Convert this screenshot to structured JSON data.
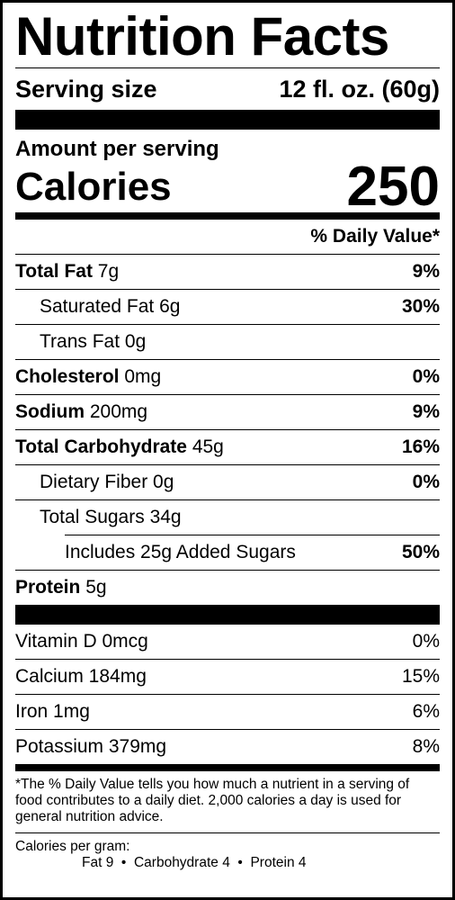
{
  "title": "Nutrition Facts",
  "serving": {
    "label": "Serving size",
    "value": "12 fl. oz. (60g)"
  },
  "amount_per_serving": "Amount per serving",
  "calories": {
    "label": "Calories",
    "value": "250"
  },
  "daily_value_header": "% Daily Value*",
  "nutrients": [
    {
      "name": "Total Fat",
      "amount": "7g",
      "dv": "9%"
    },
    {
      "name": "Saturated Fat",
      "amount": "6g",
      "dv": "30%"
    },
    {
      "name": "Trans Fat",
      "amount": "0g",
      "dv": ""
    },
    {
      "name": "Cholesterol",
      "amount": "0mg",
      "dv": "0%"
    },
    {
      "name": "Sodium",
      "amount": "200mg",
      "dv": "9%"
    },
    {
      "name": "Total Carbohydrate",
      "amount": "45g",
      "dv": "16%"
    },
    {
      "name": "Dietary Fiber",
      "amount": "0g",
      "dv": "0%"
    },
    {
      "name": "Total Sugars",
      "amount": "34g",
      "dv": ""
    },
    {
      "name": "Includes 25g Added Sugars",
      "amount": "",
      "dv": "50%"
    },
    {
      "name": "Protein",
      "amount": "5g",
      "dv": ""
    }
  ],
  "vitamins": [
    {
      "name": "Vitamin D 0mcg",
      "dv": "0%"
    },
    {
      "name": "Calcium 184mg",
      "dv": "15%"
    },
    {
      "name": "Iron 1mg",
      "dv": "6%"
    },
    {
      "name": "Potassium 379mg",
      "dv": "8%"
    }
  ],
  "footnote": "*The % Daily Value tells you how much a nutrient in a serving of food contributes to a daily diet. 2,000 calories a day is used for general nutrition advice.",
  "calories_per_gram": {
    "label": "Calories per gram:",
    "values": "Fat 9  •  Carbohydrate 4  •  Protein 4"
  }
}
